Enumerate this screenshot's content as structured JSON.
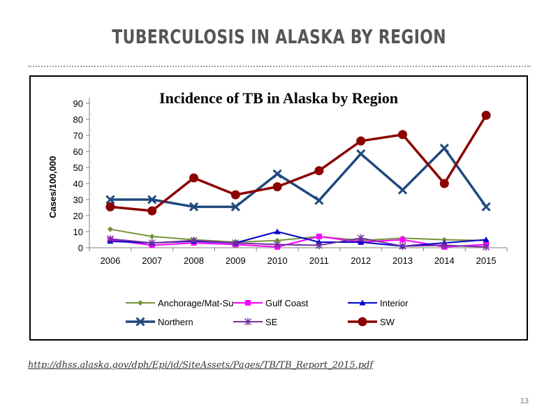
{
  "slide": {
    "title": "TUBERCULOSIS IN ALASKA BY REGION",
    "source_url": "http://dhss.alaska.gov/dph/Epi/id/SiteAssets/Pages/TB/TB_Report_2015.pdf",
    "page_number": "13"
  },
  "chart_data": {
    "type": "line",
    "title": "Incidence of TB in Alaska by Region",
    "xlabel": "",
    "ylabel": "Cases/100,000",
    "ylim": [
      0,
      90
    ],
    "yticks": [
      0,
      10,
      20,
      30,
      40,
      50,
      60,
      70,
      80,
      90
    ],
    "grid": false,
    "legend_position": "bottom",
    "categories": [
      "2006",
      "2007",
      "2008",
      "2009",
      "2010",
      "2011",
      "2012",
      "2013",
      "2014",
      "2015"
    ],
    "series": [
      {
        "name": "Anchorage/Mat-Su",
        "color": "#77933c",
        "marker": "diamond",
        "values": [
          11.5,
          7,
          5,
          3.5,
          4.5,
          7,
          4.5,
          6,
          5,
          4.5
        ]
      },
      {
        "name": "Gulf Coast",
        "color": "#ff00ff",
        "marker": "square",
        "values": [
          5,
          1.5,
          3,
          2,
          0.5,
          7,
          3.5,
          5,
          0.5,
          2
        ]
      },
      {
        "name": "Interior",
        "color": "#0000cc",
        "marker": "triangle",
        "values": [
          4,
          3,
          4,
          3,
          10,
          3.5,
          3.5,
          1,
          3,
          5
        ]
      },
      {
        "name": "Northern",
        "color": "#1f497d",
        "marker": "x",
        "values": [
          30,
          30,
          25.5,
          25.5,
          46,
          29.5,
          58.5,
          36,
          62,
          25.5
        ]
      },
      {
        "name": "SE",
        "color": "#7030a0",
        "marker": "star",
        "values": [
          5.5,
          3,
          4.5,
          3,
          2,
          1.5,
          6,
          1,
          1.5,
          0.5
        ]
      },
      {
        "name": "SW",
        "color": "#8b0000",
        "marker": "circle",
        "values": [
          25.5,
          23,
          43.5,
          33,
          38,
          48,
          66.5,
          70.5,
          40,
          82.5
        ]
      }
    ]
  }
}
